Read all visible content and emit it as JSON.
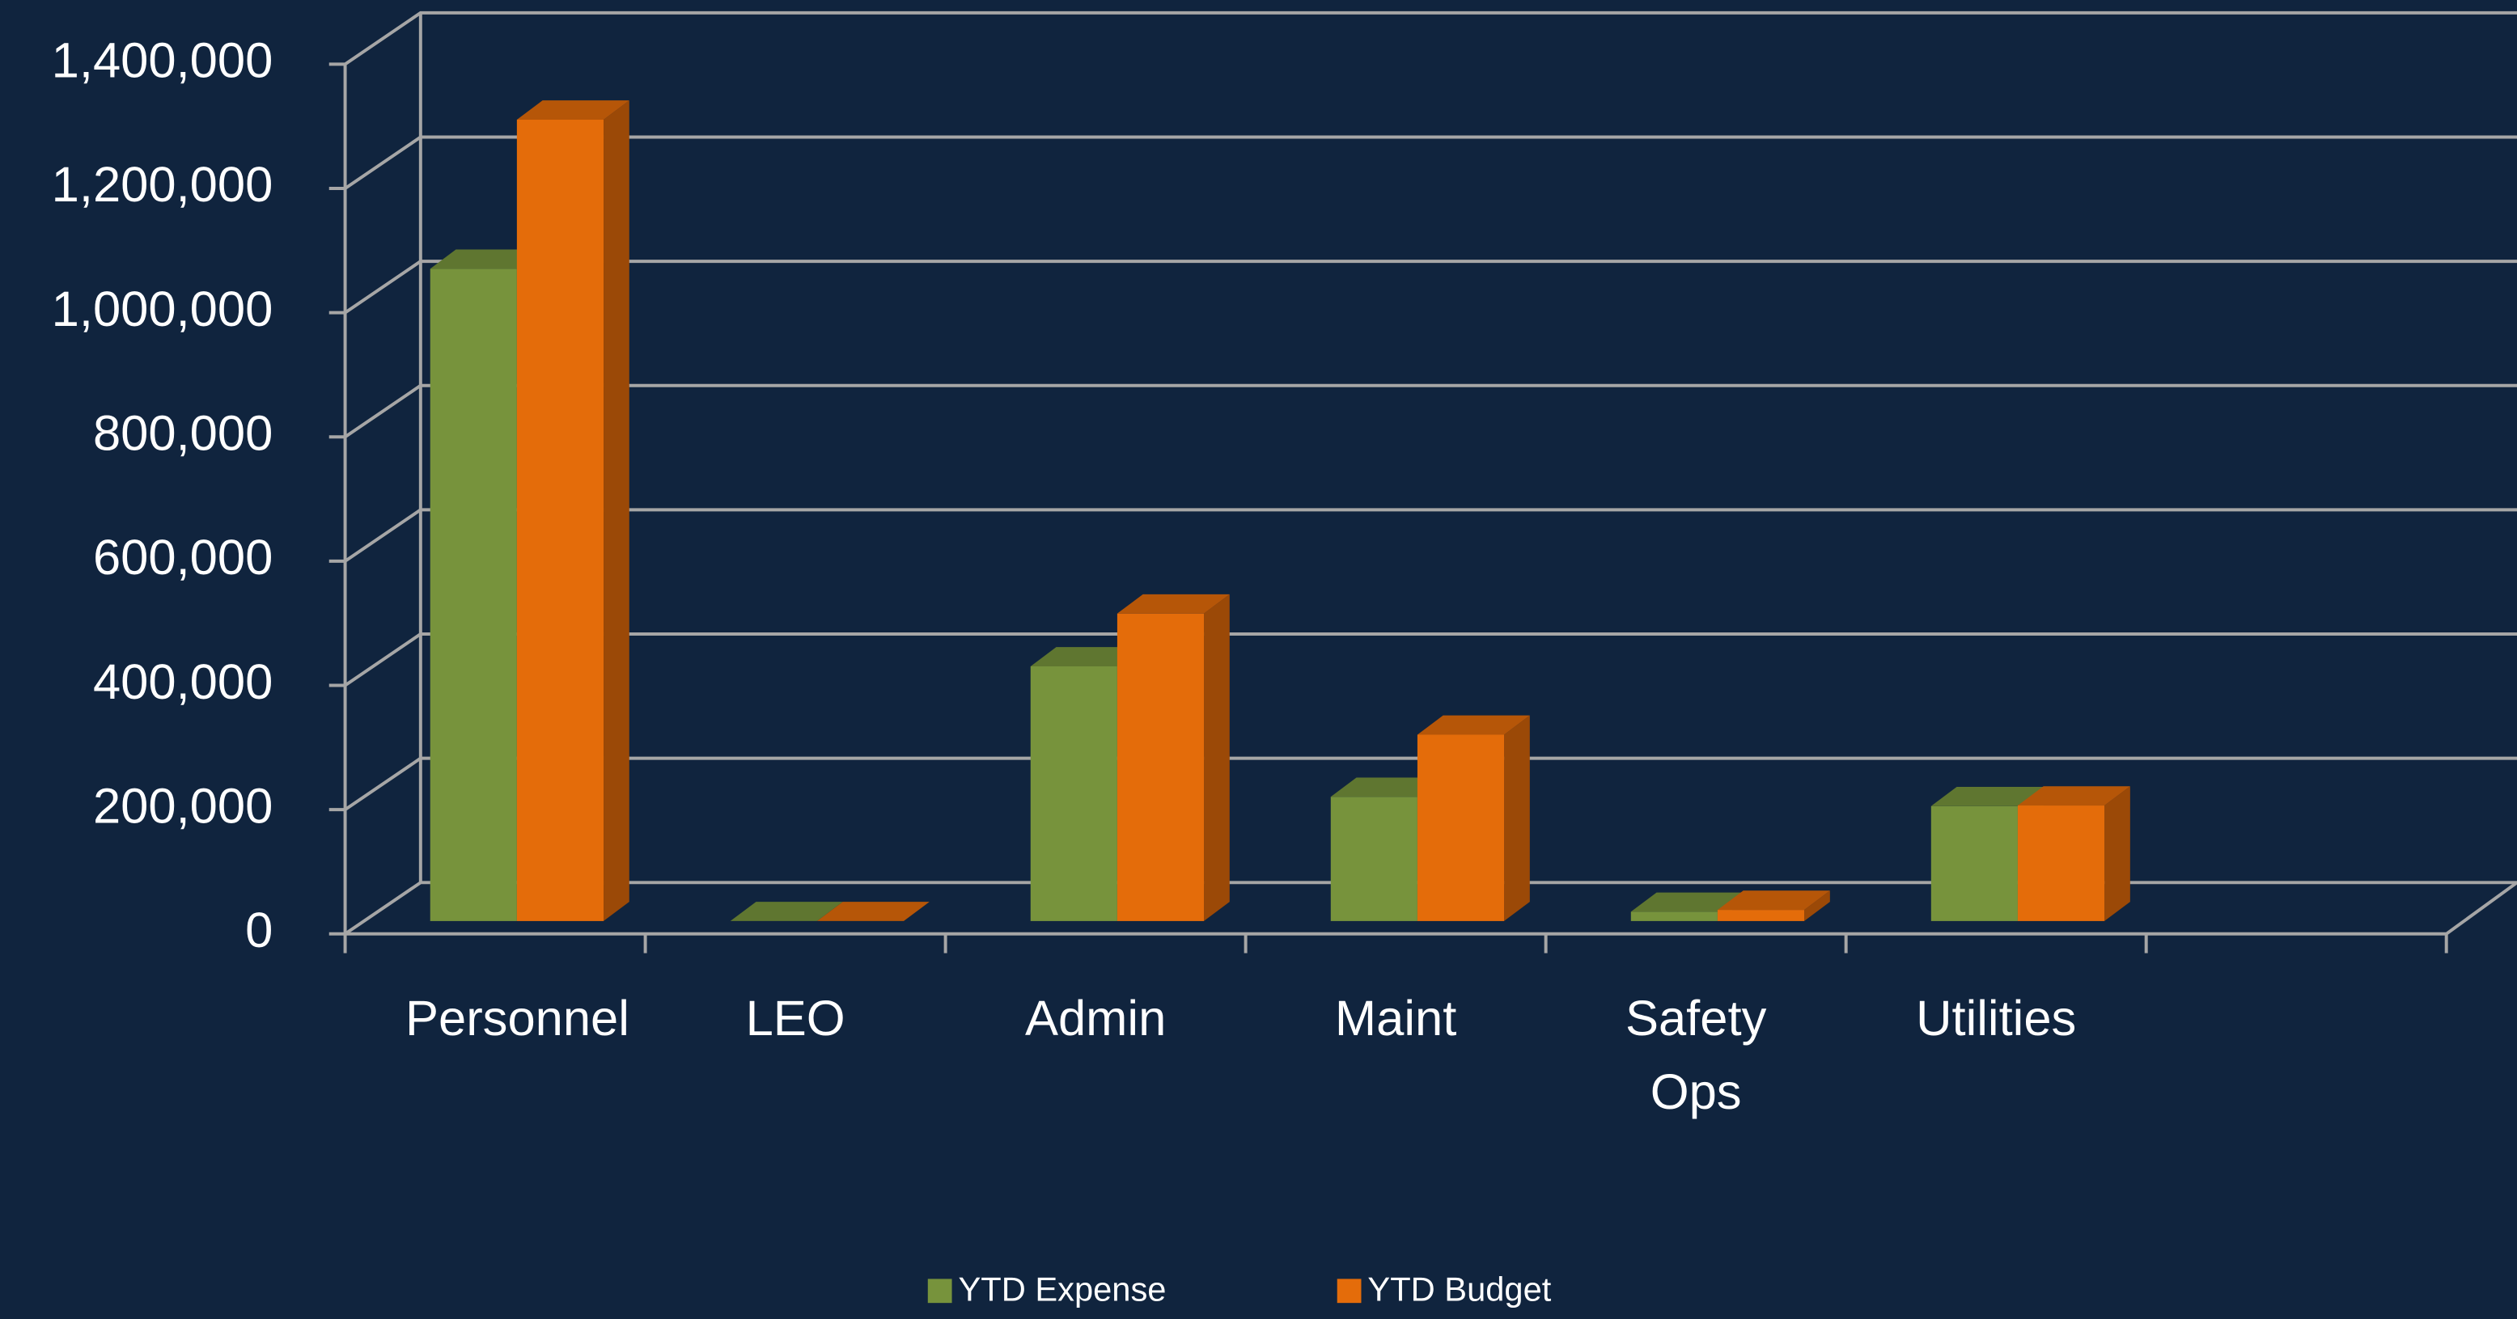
{
  "chart_data": {
    "type": "bar",
    "categories": [
      "Personnel",
      "LEO",
      "Admin",
      "Maint",
      "Safety Ops",
      "Utilities",
      null
    ],
    "series": [
      {
        "name": "YTD Expense",
        "color": "#77933c",
        "values": [
          1050000,
          0,
          410000,
          200000,
          15000,
          185000,
          null
        ]
      },
      {
        "name": "YTD Budget",
        "color": "#e46c0a",
        "values": [
          1290000,
          0,
          495000,
          300000,
          18000,
          186000,
          null
        ]
      }
    ],
    "ylim": [
      0,
      1400000
    ],
    "yticks": [
      0,
      {
        "value": 200000,
        "label": "200,000"
      },
      {
        "value": 400000,
        "label": "400,000"
      },
      {
        "value": 600000,
        "label": "600,000"
      },
      {
        "value": 800000,
        "label": "800,000"
      },
      {
        "value": 1000000,
        "label": "1,000,000"
      },
      {
        "value": 1200000,
        "label": "1,200,000"
      },
      {
        "value": 1400000,
        "label": "1,400,000"
      }
    ],
    "grid": true,
    "legend": "bottom"
  }
}
